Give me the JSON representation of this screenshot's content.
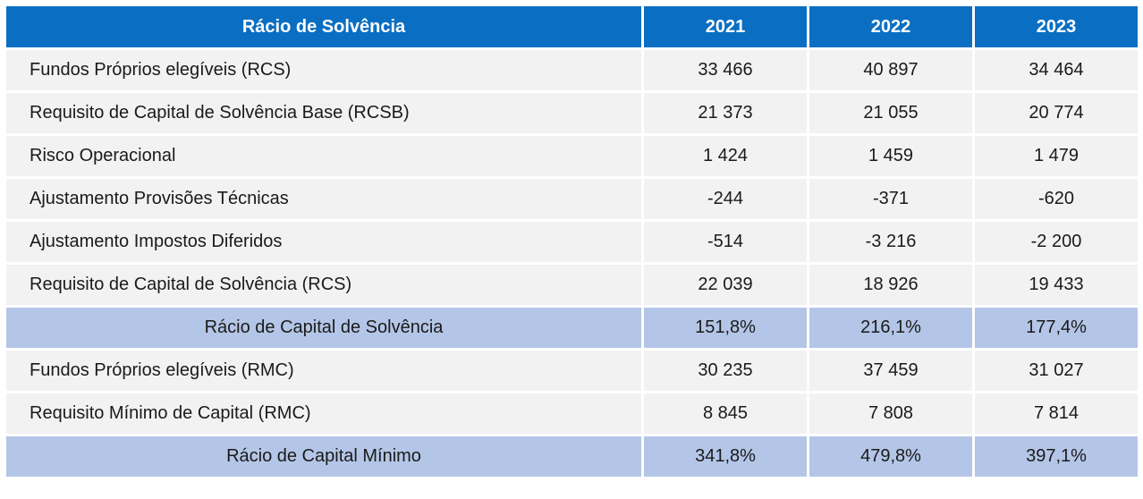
{
  "table": {
    "headers": [
      "Rácio de Solvência",
      "2021",
      "2022",
      "2023"
    ],
    "rows": [
      {
        "label": "Fundos Próprios elegíveis (RCS)",
        "values": [
          "33 466",
          "40 897",
          "34 464"
        ],
        "highlight": false
      },
      {
        "label": "Requisito de Capital de Solvência Base (RCSB)",
        "values": [
          "21 373",
          "21 055",
          "20 774"
        ],
        "highlight": false
      },
      {
        "label": "Risco Operacional",
        "values": [
          "1 424",
          "1 459",
          "1 479"
        ],
        "highlight": false
      },
      {
        "label": "Ajustamento Provisões Técnicas",
        "values": [
          "-244",
          "-371",
          "-620"
        ],
        "highlight": false
      },
      {
        "label": "Ajustamento Impostos Diferidos",
        "values": [
          "-514",
          "-3 216",
          "-2 200"
        ],
        "highlight": false
      },
      {
        "label": "Requisito de Capital de Solvência (RCS)",
        "values": [
          "22 039",
          "18 926",
          "19 433"
        ],
        "highlight": false
      },
      {
        "label": "Rácio de Capital de Solvência",
        "values": [
          "151,8%",
          "216,1%",
          "177,4%"
        ],
        "highlight": true
      },
      {
        "label": "Fundos Próprios elegíveis (RMC)",
        "values": [
          "30 235",
          "37 459",
          "31 027"
        ],
        "highlight": false
      },
      {
        "label": "Requisito Mínimo de Capital (RMC)",
        "values": [
          "8 845",
          "7 808",
          "7 814"
        ],
        "highlight": false
      },
      {
        "label": "Rácio de Capital Mínimo",
        "values": [
          "341,8%",
          "479,8%",
          "397,1%"
        ],
        "highlight": true
      }
    ]
  },
  "colors": {
    "header_bg": "#0a6fc2",
    "row_bg": "#f2f2f2",
    "highlight_bg": "#b4c6e7"
  }
}
